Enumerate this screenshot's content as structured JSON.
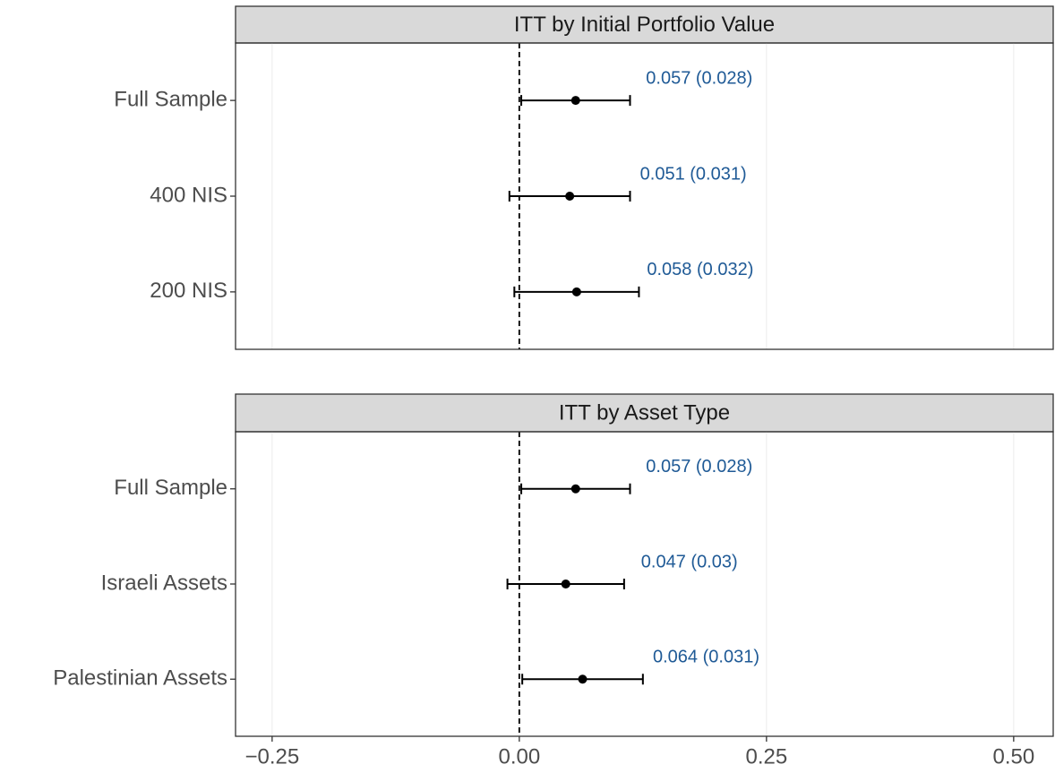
{
  "chart_data": [
    {
      "type": "pointrange",
      "title": "ITT by Initial Portfolio Value",
      "categories": [
        "Full Sample",
        "400 NIS",
        "200 NIS"
      ],
      "values": [
        0.057,
        0.051,
        0.058
      ],
      "errors": [
        0.055,
        0.061,
        0.063
      ],
      "value_labels": [
        "0.057 (0.028)",
        "0.051 (0.031)",
        "0.058 (0.032)"
      ],
      "color": "#000000",
      "label_color": "#1f5a96",
      "xlim": [
        -0.287,
        0.54
      ],
      "xticks": [
        {
          "value": -0.25,
          "label": "−0.25"
        },
        {
          "value": 0,
          "label": "0.00"
        },
        0.25,
        {
          "value": 0.5,
          "label": "0.50"
        }
      ],
      "grid": true
    },
    {
      "type": "pointrange",
      "title": "ITT by Asset Type",
      "categories": [
        "Full Sample",
        "Israeli Assets",
        "Palestinian Assets"
      ],
      "values": [
        0.057,
        0.047,
        0.064
      ],
      "errors": [
        0.055,
        0.059,
        0.061
      ],
      "value_labels": [
        "0.057 (0.028)",
        "0.047 (0.03)",
        "0.064 (0.031)"
      ],
      "color": "#000000",
      "label_color": "#1f5a96",
      "xlim": [
        -0.287,
        0.54
      ],
      "xticks": [
        {
          "value": -0.25,
          "label": "−0.25"
        },
        {
          "value": 0,
          "label": "0.00"
        },
        0.25,
        {
          "value": 0.5,
          "label": "0.50"
        }
      ],
      "grid": true
    }
  ]
}
